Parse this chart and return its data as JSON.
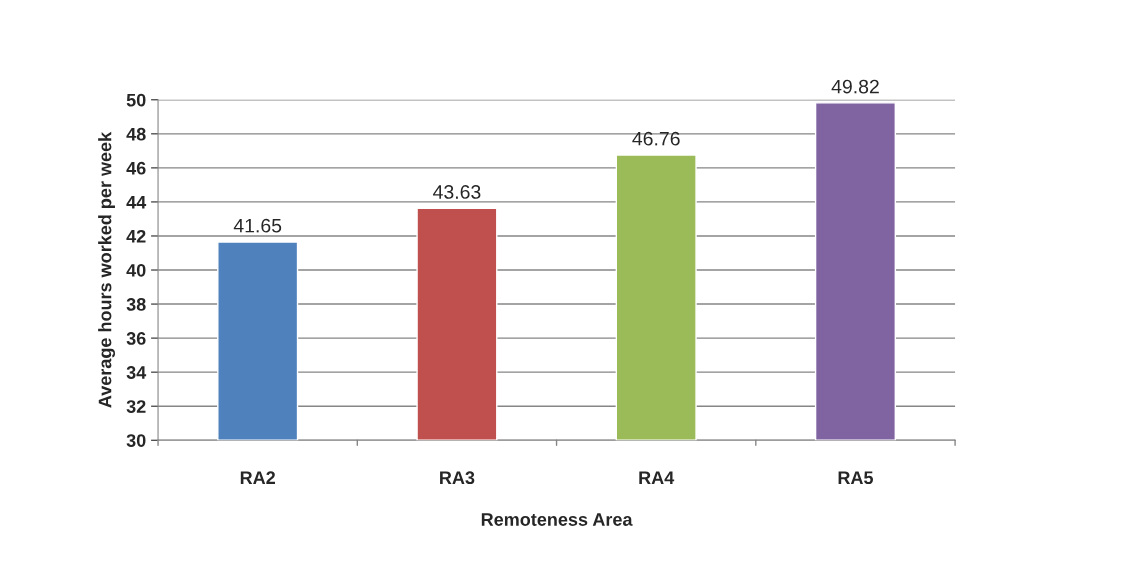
{
  "chart_data": {
    "type": "bar",
    "xlabel": "Remoteness Area",
    "ylabel": "Average hours worked per week",
    "categories": [
      "RA2",
      "RA3",
      "RA4",
      "RA5"
    ],
    "values": [
      41.65,
      43.63,
      46.76,
      49.82
    ],
    "colors": [
      "#4f81bd",
      "#c0504d",
      "#9bbb59",
      "#8064a2"
    ],
    "ylim": [
      30,
      50
    ],
    "yticks": [
      30,
      32,
      34,
      36,
      38,
      40,
      42,
      44,
      46,
      48,
      50
    ],
    "grid": "y",
    "data_labels": true,
    "legend": false
  }
}
